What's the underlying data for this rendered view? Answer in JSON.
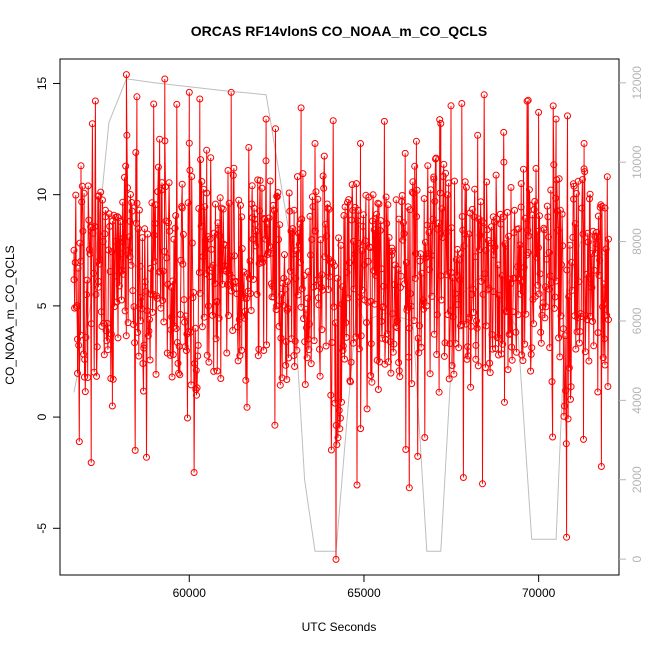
{
  "chart_data": {
    "type": "line",
    "title": "ORCAS RF14vlonS CO_NOAA_m_CO_QCLS",
    "xlabel": "UTC Seconds",
    "ylabel": "CO_NOAA_m_CO_QCLS",
    "xlim": [
      56300,
      72300
    ],
    "ylim": [
      -7.1,
      16.1
    ],
    "y2lim": [
      -400,
      12600
    ],
    "x_ticks": [
      60000,
      65000,
      70000
    ],
    "x_tick_labels": [
      "60000",
      "65000",
      "70000"
    ],
    "y_ticks": [
      -5,
      0,
      5,
      10,
      15
    ],
    "y_tick_labels": [
      "-5",
      "0",
      "5",
      "10",
      "15"
    ],
    "y2_ticks": [
      0,
      2000,
      4000,
      6000,
      8000,
      10000,
      12000
    ],
    "y2_tick_labels": [
      "0",
      "2000",
      "4000",
      "6000",
      "8000",
      "10000",
      "12000"
    ],
    "colors": {
      "series": "#ff0000",
      "altitude": "#bebebe",
      "axis": "#000000",
      "axis2": "#b5b5b5"
    },
    "series": [
      {
        "style": "red line with open circle markers (dense scatter of differences)",
        "x_range": [
          56700,
          72000
        ],
        "sample_points": [
          [
            56700,
            7.5
          ],
          [
            56800,
            3.5
          ],
          [
            56900,
            11.3
          ],
          [
            57000,
            1.8
          ],
          [
            57200,
            4.2
          ],
          [
            57400,
            6.1
          ],
          [
            57600,
            9.3
          ],
          [
            57800,
            0.5
          ],
          [
            58000,
            5.9
          ],
          [
            58200,
            15.4
          ],
          [
            58300,
            8.8
          ],
          [
            58500,
            14.4
          ],
          [
            58700,
            3.1
          ],
          [
            59000,
            7.0
          ],
          [
            59300,
            15.2
          ],
          [
            59500,
            4.5
          ],
          [
            59800,
            9.4
          ],
          [
            60000,
            14.6
          ],
          [
            60200,
            2.1
          ],
          [
            60300,
            14.3
          ],
          [
            60500,
            12.0
          ],
          [
            60800,
            5.2
          ],
          [
            61000,
            6.6
          ],
          [
            61200,
            14.6
          ],
          [
            61500,
            3.0
          ],
          [
            61800,
            10.4
          ],
          [
            62000,
            6.9
          ],
          [
            62200,
            13.4
          ],
          [
            62500,
            5.0
          ],
          [
            62800,
            4.8
          ],
          [
            63000,
            9.3
          ],
          [
            63200,
            13.9
          ],
          [
            63400,
            3.5
          ],
          [
            63600,
            12.3
          ],
          [
            63800,
            6.4
          ],
          [
            64000,
            7.1
          ],
          [
            64200,
            -6.4
          ],
          [
            64400,
            3.0
          ],
          [
            64700,
            7.9
          ],
          [
            64900,
            12.3
          ],
          [
            65200,
            5.2
          ],
          [
            65500,
            4.3
          ],
          [
            65800,
            7.6
          ],
          [
            66000,
            8.9
          ],
          [
            66300,
            4.0
          ],
          [
            66500,
            12.4
          ],
          [
            66800,
            5.0
          ],
          [
            67000,
            10.7
          ],
          [
            67200,
            13.2
          ],
          [
            67500,
            6.5
          ],
          [
            67800,
            14.1
          ],
          [
            68000,
            4.4
          ],
          [
            68200,
            2.6
          ],
          [
            68500,
            4.1
          ],
          [
            68700,
            9.0
          ],
          [
            69000,
            12.8
          ],
          [
            69200,
            6.0
          ],
          [
            69500,
            10.5
          ],
          [
            69700,
            7.4
          ],
          [
            70000,
            13.7
          ],
          [
            70300,
            7.4
          ],
          [
            70500,
            13.4
          ],
          [
            70800,
            -5.4
          ],
          [
            71000,
            9.8
          ],
          [
            71300,
            12.3
          ],
          [
            71500,
            6.2
          ],
          [
            71700,
            3.8
          ],
          [
            71900,
            9.4
          ],
          [
            72000,
            8.0
          ]
        ]
      },
      {
        "style": "grey line, right axis (altitude)",
        "points": [
          [
            56700,
            4200
          ],
          [
            57200,
            6500
          ],
          [
            57700,
            11000
          ],
          [
            58200,
            12100
          ],
          [
            59000,
            12000
          ],
          [
            60000,
            11900
          ],
          [
            61000,
            11800
          ],
          [
            62200,
            11700
          ],
          [
            62900,
            8000
          ],
          [
            63300,
            2000
          ],
          [
            63600,
            200
          ],
          [
            64200,
            200
          ],
          [
            64800,
            6500
          ],
          [
            65000,
            6000
          ],
          [
            65600,
            6200
          ],
          [
            66400,
            6000
          ],
          [
            66800,
            200
          ],
          [
            67200,
            200
          ],
          [
            67600,
            6500
          ],
          [
            68400,
            7200
          ],
          [
            69400,
            5800
          ],
          [
            69800,
            500
          ],
          [
            70500,
            500
          ],
          [
            70800,
            6800
          ],
          [
            71200,
            8000
          ],
          [
            71600,
            7800
          ],
          [
            72000,
            7600
          ]
        ]
      }
    ],
    "grid": false,
    "legend": "none"
  }
}
